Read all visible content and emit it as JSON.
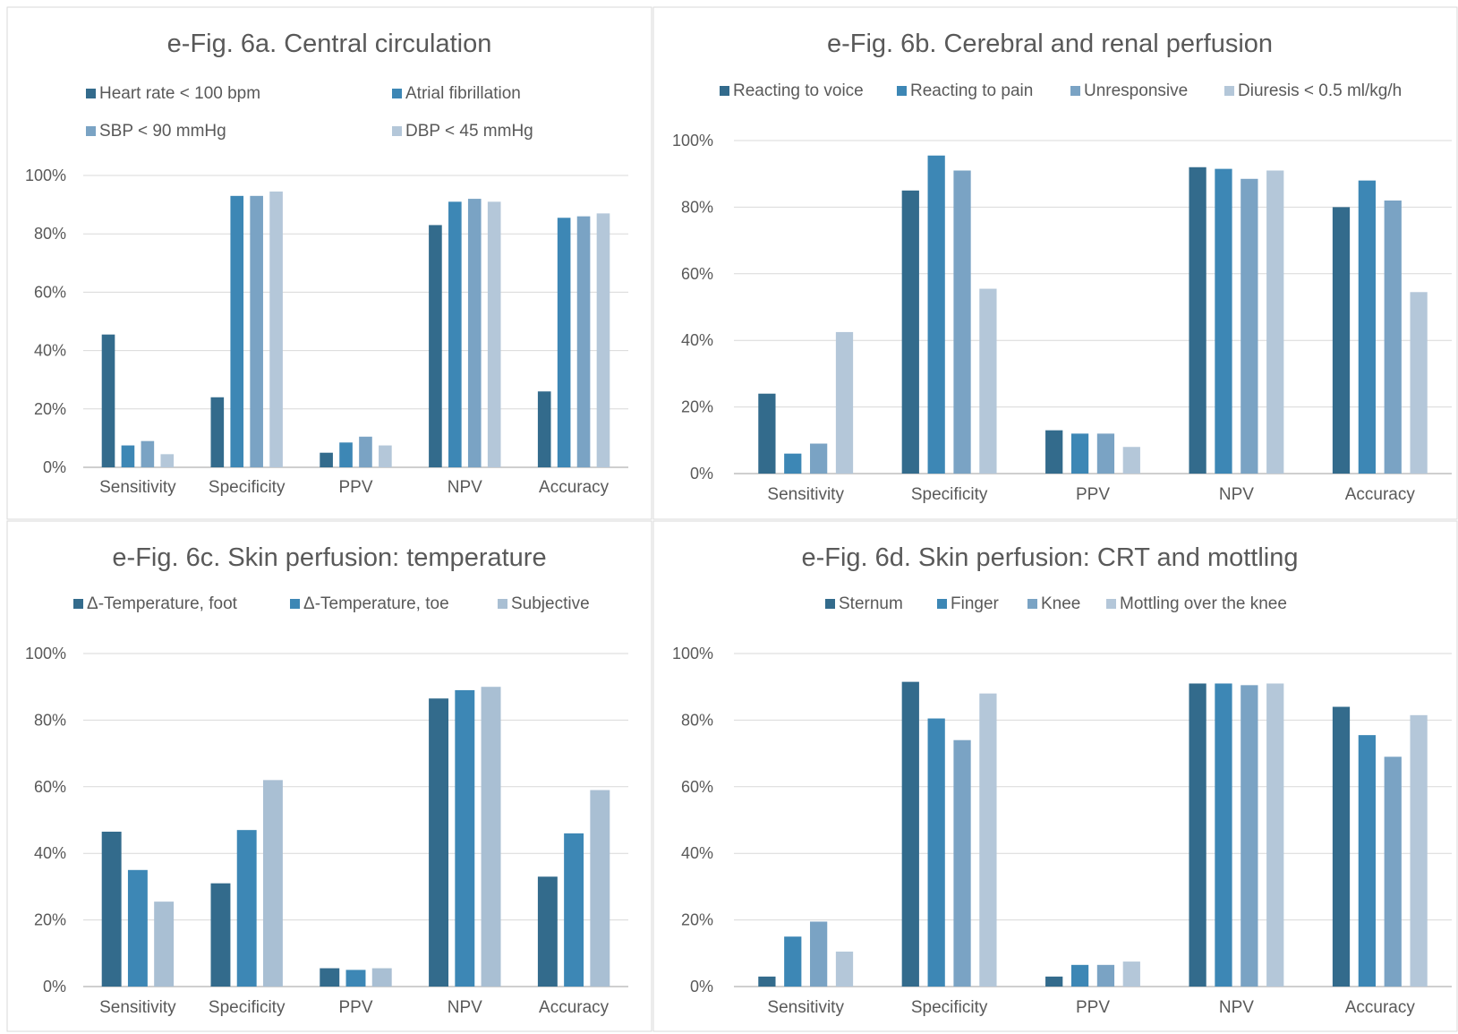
{
  "colors": {
    "series": [
      "#336b8c",
      "#3d87b5",
      "#7aa3c4",
      "#b4c7d9"
    ],
    "series3": [
      "#336b8c",
      "#3d87b5",
      "#a9bfd3"
    ],
    "grid": "#d9d9d9",
    "axis": "#bfbfbf",
    "text": "#595959",
    "panel_border": "#d9d9d9"
  },
  "chart_data": [
    {
      "type": "bar",
      "title": "e-Fig. 6a. Central circulation",
      "categories": [
        "Sensitivity",
        "Specificity",
        "PPV",
        "NPV",
        "Accuracy"
      ],
      "series": [
        {
          "name": "Heart rate < 100 bpm",
          "values": [
            45.5,
            24,
            5,
            83,
            26
          ]
        },
        {
          "name": "Atrial fibrillation",
          "values": [
            7.5,
            93,
            8.5,
            91,
            85.5
          ]
        },
        {
          "name": "SBP < 90 mmHg",
          "values": [
            9,
            93,
            10.5,
            92,
            86
          ]
        },
        {
          "name": "DBP < 45 mmHg",
          "values": [
            4.5,
            94.5,
            7.5,
            91,
            87
          ]
        }
      ],
      "yticks": [
        "0%",
        "20%",
        "40%",
        "60%",
        "80%",
        "100%"
      ],
      "ylim": [
        0,
        100
      ],
      "grid": true,
      "legend_position": "top"
    },
    {
      "type": "bar",
      "title": "e-Fig. 6b. Cerebral and renal perfusion",
      "categories": [
        "Sensitivity",
        "Specificity",
        "PPV",
        "NPV",
        "Accuracy"
      ],
      "series": [
        {
          "name": "Reacting to voice",
          "values": [
            24,
            85,
            13,
            92,
            80
          ]
        },
        {
          "name": "Reacting to pain",
          "values": [
            6,
            95.5,
            12,
            91.5,
            88
          ]
        },
        {
          "name": "Unresponsive",
          "values": [
            9,
            91,
            12,
            88.5,
            82
          ]
        },
        {
          "name": "Diuresis < 0.5 ml/kg/h",
          "values": [
            42.5,
            55.5,
            8,
            91,
            54.5
          ]
        }
      ],
      "yticks": [
        "0%",
        "20%",
        "40%",
        "60%",
        "80%",
        "100%"
      ],
      "ylim": [
        0,
        100
      ],
      "grid": true,
      "legend_position": "top"
    },
    {
      "type": "bar",
      "title": "e-Fig. 6c. Skin perfusion: temperature",
      "categories": [
        "Sensitivity",
        "Specificity",
        "PPV",
        "NPV",
        "Accuracy"
      ],
      "series": [
        {
          "name": "Δ-Temperature, foot",
          "values": [
            46.5,
            31,
            5.5,
            86.5,
            33
          ]
        },
        {
          "name": "Δ-Temperature, toe",
          "values": [
            35,
            47,
            5,
            89,
            46
          ]
        },
        {
          "name": "Subjective",
          "values": [
            25.5,
            62,
            5.5,
            90,
            59
          ]
        }
      ],
      "yticks": [
        "0%",
        "20%",
        "40%",
        "60%",
        "80%",
        "100%"
      ],
      "ylim": [
        0,
        100
      ],
      "grid": true,
      "legend_position": "top"
    },
    {
      "type": "bar",
      "title": "e-Fig. 6d. Skin perfusion: CRT and mottling",
      "categories": [
        "Sensitivity",
        "Specificity",
        "PPV",
        "NPV",
        "Accuracy"
      ],
      "series": [
        {
          "name": "Sternum",
          "values": [
            3,
            91.5,
            3,
            91,
            84
          ]
        },
        {
          "name": "Finger",
          "values": [
            15,
            80.5,
            6.5,
            91,
            75.5
          ]
        },
        {
          "name": "Knee",
          "values": [
            19.5,
            74,
            6.5,
            90.5,
            69
          ]
        },
        {
          "name": "Mottling over the knee",
          "values": [
            10.5,
            88,
            7.5,
            91,
            81.5
          ]
        }
      ],
      "yticks": [
        "0%",
        "20%",
        "40%",
        "60%",
        "80%",
        "100%"
      ],
      "ylim": [
        0,
        100
      ],
      "grid": true,
      "legend_position": "top"
    }
  ]
}
